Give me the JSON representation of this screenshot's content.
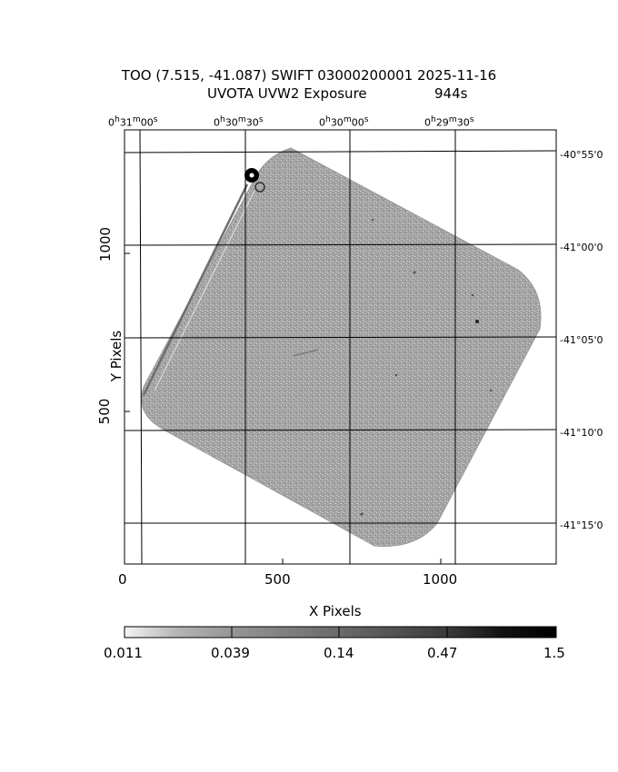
{
  "header": {
    "title_line1": "TOO (7.515, -41.087) SWIFT 03000200001 2025-11-16",
    "title_line2_left": "UVOTA UVW2 Exposure",
    "title_line2_right": "944s"
  },
  "ra_labels": [
    "0h31m00s",
    "0h30m30s",
    "0h30m00s",
    "0h29m30s"
  ],
  "ra_labels_display": [
    {
      "h": "0",
      "hs": "h",
      "m": "31",
      "ms": "m",
      "s": "00",
      "ss": "s"
    },
    {
      "h": "0",
      "hs": "h",
      "m": "30",
      "ms": "m",
      "s": "30",
      "ss": "s"
    },
    {
      "h": "0",
      "hs": "h",
      "m": "30",
      "ms": "m",
      "s": "00",
      "ss": "s"
    },
    {
      "h": "0",
      "hs": "h",
      "m": "29",
      "ms": "m",
      "s": "30",
      "ss": "s"
    }
  ],
  "dec_labels": [
    "-40°55'0",
    "-41°00'0",
    "-41°05'0",
    "-41°10'0",
    "-41°15'0"
  ],
  "x_axis": {
    "label": "X Pixels",
    "ticks": [
      "0",
      "500",
      "1000"
    ]
  },
  "y_axis": {
    "label": "Y Pixels",
    "ticks": [
      "1000",
      "500"
    ]
  },
  "colorbar": {
    "labels": [
      "0.011",
      "0.039",
      "0.14",
      "0.47",
      "1.5"
    ]
  },
  "colors": {
    "field": "#9a9a9a",
    "background": "#ffffff",
    "axis": "#000000"
  }
}
